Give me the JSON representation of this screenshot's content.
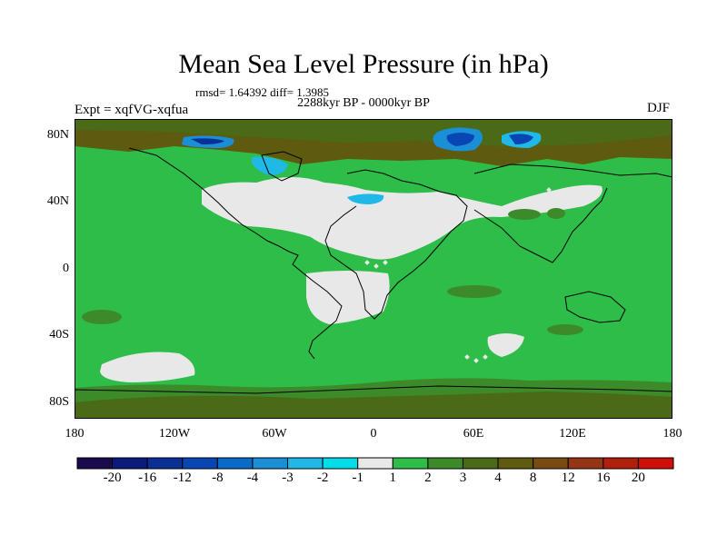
{
  "header": {
    "title": "Mean Sea Level Pressure (in hPa)",
    "stats": "rmsd= 1.64392 diff= 1.3985",
    "period": "2288kyr BP - 0000kyr BP",
    "experiment": "Expt = xqfVG-xqfua",
    "season": "DJF"
  },
  "axes": {
    "lat_labels": [
      "80N",
      "40N",
      "0",
      "40S",
      "80S"
    ],
    "lon_labels": [
      "180",
      "120W",
      "60W",
      "0",
      "60E",
      "120E",
      "180"
    ]
  },
  "colorbar": {
    "labels": [
      "-20",
      "-16",
      "-12",
      "-8",
      "-4",
      "-3",
      "-2",
      "-1",
      "1",
      "2",
      "3",
      "4",
      "8",
      "12",
      "16",
      "20"
    ],
    "colors": [
      "#1a0a4e",
      "#0c1a7c",
      "#0a2f96",
      "#0a45b4",
      "#0a6ac8",
      "#1a8fd6",
      "#20b8e6",
      "#00dde8",
      "#e8e8e8",
      "#2dbd48",
      "#3d8a2a",
      "#4a6a18",
      "#5e5a10",
      "#7a4a14",
      "#963416",
      "#b0200c",
      "#d01008"
    ]
  },
  "chart_data": {
    "type": "heatmap",
    "variable": "Mean Sea Level Pressure difference",
    "units": "hPa",
    "title": "Mean Sea Level Pressure (in hPa)",
    "x_range": [
      -180,
      180
    ],
    "y_range": [
      -90,
      90
    ],
    "levels": [
      -20,
      -16,
      -12,
      -8,
      -4,
      -3,
      -2,
      -1,
      1,
      2,
      3,
      4,
      8,
      12,
      16,
      20
    ],
    "rmsd": 1.64392,
    "diff": 1.3985,
    "regions": [
      {
        "name": "global background",
        "value_range": "1 to 2"
      },
      {
        "name": "North Atlantic / Europe / North Africa / Middle East",
        "value_range": "-1 to 1"
      },
      {
        "name": "South Atlantic",
        "value_range": "-1 to 1"
      },
      {
        "name": "South Pacific",
        "value_range": "-1 to 1"
      },
      {
        "name": "Arctic Ocean",
        "value_range": "3 to 4"
      },
      {
        "name": "Siberia / Arctic",
        "value_range": "-8 to -2"
      },
      {
        "name": "Greenland",
        "value_range": "-4 to -2"
      },
      {
        "name": "Mediterranean",
        "value_range": "-2 to -1"
      },
      {
        "name": "Southern Ocean coast",
        "value_range": "2 to 3"
      }
    ]
  }
}
